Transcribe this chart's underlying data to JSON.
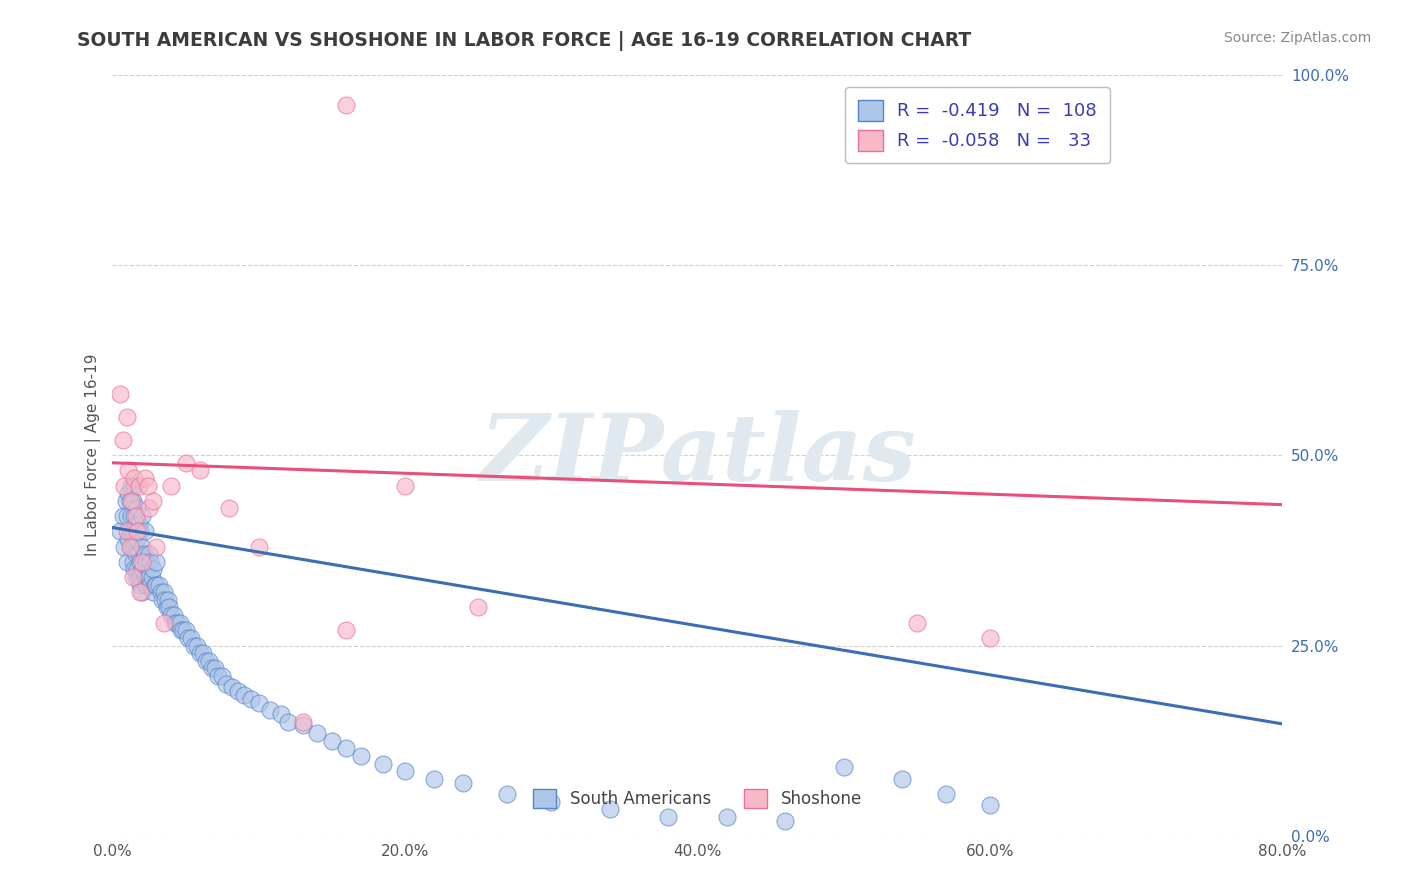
{
  "title": "SOUTH AMERICAN VS SHOSHONE IN LABOR FORCE | AGE 16-19 CORRELATION CHART",
  "source_text": "Source: ZipAtlas.com",
  "ylabel": "In Labor Force | Age 16-19",
  "xlim": [
    0.0,
    0.8
  ],
  "ylim": [
    0.0,
    1.0
  ],
  "xtick_labels": [
    "0.0%",
    "20.0%",
    "40.0%",
    "60.0%",
    "80.0%"
  ],
  "xtick_values": [
    0.0,
    0.2,
    0.4,
    0.6,
    0.8
  ],
  "ytick_labels_right": [
    "0.0%",
    "25.0%",
    "50.0%",
    "75.0%",
    "100.0%"
  ],
  "ytick_values": [
    0.0,
    0.25,
    0.5,
    0.75,
    1.0
  ],
  "blue_R": -0.419,
  "blue_N": 108,
  "pink_R": -0.058,
  "pink_N": 33,
  "blue_color": "#aec6e8",
  "pink_color": "#f7b8c8",
  "blue_edge_color": "#5585c8",
  "pink_edge_color": "#e8709a",
  "blue_line_color": "#3b6db5",
  "pink_line_color": "#e8507a",
  "legend_label_blue": "South Americans",
  "legend_label_pink": "Shoshone",
  "title_color": "#3c3c3c",
  "source_color": "#888888",
  "axis_color": "#555555",
  "grid_color": "#d0d0d0",
  "watermark_color": "#e0e8f0",
  "blue_scatter_x": [
    0.005,
    0.007,
    0.008,
    0.009,
    0.01,
    0.01,
    0.011,
    0.011,
    0.012,
    0.012,
    0.013,
    0.013,
    0.013,
    0.014,
    0.014,
    0.014,
    0.015,
    0.015,
    0.015,
    0.015,
    0.016,
    0.016,
    0.016,
    0.017,
    0.017,
    0.017,
    0.018,
    0.018,
    0.018,
    0.019,
    0.019,
    0.019,
    0.02,
    0.02,
    0.02,
    0.02,
    0.022,
    0.022,
    0.022,
    0.023,
    0.023,
    0.024,
    0.025,
    0.025,
    0.026,
    0.026,
    0.027,
    0.028,
    0.028,
    0.029,
    0.03,
    0.03,
    0.032,
    0.033,
    0.034,
    0.035,
    0.036,
    0.037,
    0.038,
    0.039,
    0.04,
    0.042,
    0.043,
    0.044,
    0.046,
    0.047,
    0.048,
    0.05,
    0.052,
    0.054,
    0.056,
    0.058,
    0.06,
    0.062,
    0.064,
    0.066,
    0.068,
    0.07,
    0.072,
    0.075,
    0.078,
    0.082,
    0.086,
    0.09,
    0.095,
    0.1,
    0.108,
    0.115,
    0.12,
    0.13,
    0.14,
    0.15,
    0.16,
    0.17,
    0.185,
    0.2,
    0.22,
    0.24,
    0.27,
    0.3,
    0.34,
    0.38,
    0.42,
    0.46,
    0.5,
    0.54,
    0.57,
    0.6
  ],
  "blue_scatter_y": [
    0.4,
    0.42,
    0.38,
    0.44,
    0.36,
    0.42,
    0.39,
    0.45,
    0.4,
    0.44,
    0.38,
    0.42,
    0.46,
    0.36,
    0.4,
    0.44,
    0.35,
    0.38,
    0.42,
    0.46,
    0.34,
    0.37,
    0.41,
    0.35,
    0.39,
    0.43,
    0.34,
    0.37,
    0.41,
    0.33,
    0.36,
    0.4,
    0.32,
    0.35,
    0.38,
    0.42,
    0.34,
    0.37,
    0.4,
    0.33,
    0.36,
    0.34,
    0.34,
    0.37,
    0.33,
    0.36,
    0.34,
    0.32,
    0.35,
    0.33,
    0.33,
    0.36,
    0.33,
    0.32,
    0.31,
    0.32,
    0.31,
    0.3,
    0.31,
    0.3,
    0.29,
    0.29,
    0.28,
    0.28,
    0.28,
    0.27,
    0.27,
    0.27,
    0.26,
    0.26,
    0.25,
    0.25,
    0.24,
    0.24,
    0.23,
    0.23,
    0.22,
    0.22,
    0.21,
    0.21,
    0.2,
    0.195,
    0.19,
    0.185,
    0.18,
    0.175,
    0.165,
    0.16,
    0.15,
    0.145,
    0.135,
    0.125,
    0.115,
    0.105,
    0.095,
    0.085,
    0.075,
    0.07,
    0.055,
    0.045,
    0.035,
    0.025,
    0.025,
    0.02,
    0.09,
    0.075,
    0.055,
    0.04
  ],
  "pink_scatter_x": [
    0.005,
    0.007,
    0.008,
    0.01,
    0.01,
    0.011,
    0.012,
    0.013,
    0.014,
    0.015,
    0.016,
    0.017,
    0.018,
    0.019,
    0.02,
    0.022,
    0.024,
    0.025,
    0.028,
    0.03,
    0.035,
    0.04,
    0.05,
    0.06,
    0.08,
    0.1,
    0.13,
    0.16,
    0.2,
    0.25,
    0.55,
    0.6,
    0.16
  ],
  "pink_scatter_y": [
    0.58,
    0.52,
    0.46,
    0.55,
    0.4,
    0.48,
    0.38,
    0.44,
    0.34,
    0.47,
    0.42,
    0.4,
    0.46,
    0.32,
    0.36,
    0.47,
    0.46,
    0.43,
    0.44,
    0.38,
    0.28,
    0.46,
    0.49,
    0.48,
    0.43,
    0.38,
    0.15,
    0.27,
    0.46,
    0.3,
    0.28,
    0.26,
    0.96
  ],
  "watermark_text": "ZIPatlas",
  "blue_trend_x": [
    0.0,
    0.8
  ],
  "blue_trend_y": [
    0.405,
    0.147
  ],
  "pink_trend_x": [
    0.0,
    0.8
  ],
  "pink_trend_y": [
    0.49,
    0.435
  ]
}
